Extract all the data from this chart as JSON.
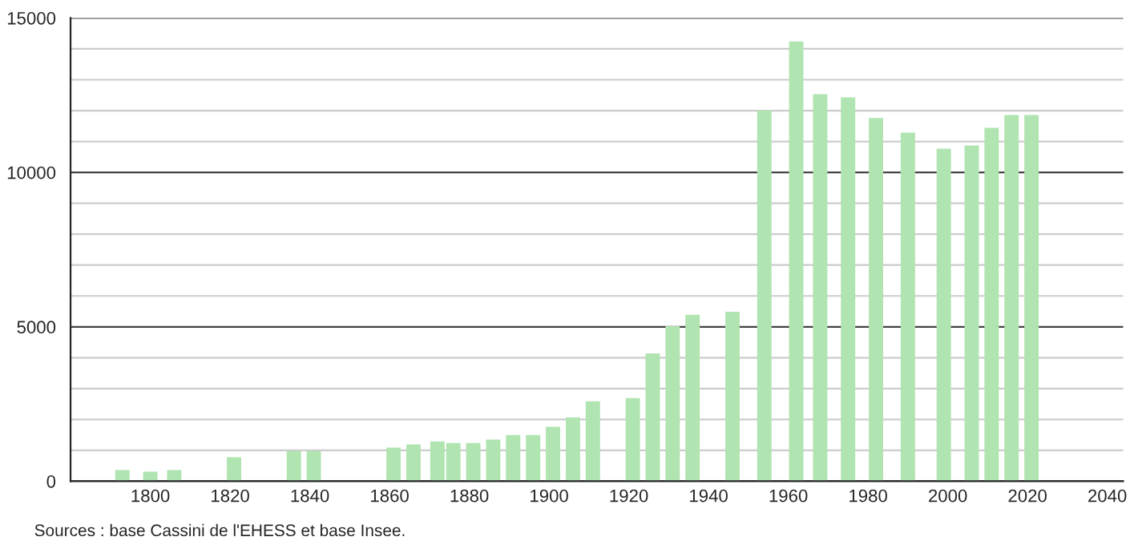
{
  "chart_data": {
    "type": "bar",
    "x": [
      1793,
      1800,
      1806,
      1821,
      1836,
      1841,
      1861,
      1866,
      1872,
      1876,
      1881,
      1886,
      1891,
      1896,
      1901,
      1906,
      1911,
      1921,
      1926,
      1931,
      1936,
      1946,
      1954,
      1962,
      1968,
      1975,
      1982,
      1990,
      1999,
      2006,
      2011,
      2016,
      2021
    ],
    "values": [
      360,
      310,
      360,
      780,
      980,
      980,
      1090,
      1190,
      1290,
      1240,
      1240,
      1350,
      1500,
      1500,
      1760,
      2070,
      2590,
      2690,
      4140,
      5020,
      5390,
      5490,
      12010,
      14240,
      12530,
      12430,
      11760,
      11290,
      10770,
      10870,
      11440,
      11860,
      11860
    ],
    "color": "#b0e4b0",
    "xlim": [
      1780,
      2044
    ],
    "xticks": [
      1800,
      1820,
      1840,
      1860,
      1880,
      1900,
      1920,
      1940,
      1960,
      1980,
      2000,
      2020,
      2040
    ],
    "ylim": [
      0,
      15000
    ],
    "yticks": [
      0,
      {
        "value": 1000,
        "label": null
      },
      {
        "value": 2000,
        "label": null
      },
      {
        "value": 3000,
        "label": null
      },
      {
        "value": 4000,
        "label": null
      },
      5000,
      {
        "value": 6000,
        "label": null
      },
      {
        "value": 7000,
        "label": null
      },
      {
        "value": 8000,
        "label": null
      },
      {
        "value": 9000,
        "label": null
      },
      10000,
      {
        "value": 11000,
        "label": null
      },
      {
        "value": 12000,
        "label": null
      },
      {
        "value": 13000,
        "label": null
      },
      {
        "value": 14000,
        "label": null
      },
      15000
    ],
    "grid": "y",
    "annotations": [
      "Sources : base Cassini de l'EHESS et base Insee."
    ]
  }
}
